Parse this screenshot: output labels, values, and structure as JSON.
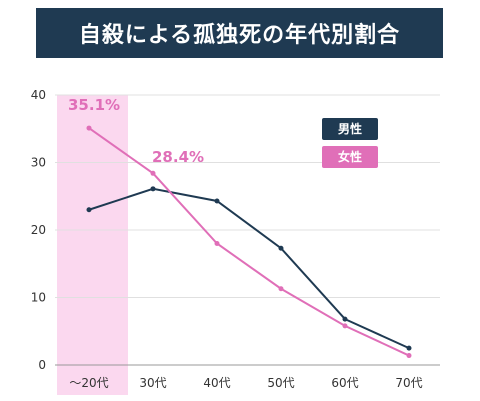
{
  "colors": {
    "title_bg": "#1f3a52",
    "male": "#1f3a52",
    "female": "#e06fb8",
    "highlight": "#fbd8ef",
    "grid": "#e0e0e0"
  },
  "chart_data": {
    "type": "line",
    "title": "自殺による孤独死の年代別割合",
    "categories": [
      "～20代",
      "30代",
      "40代",
      "50代",
      "60代",
      "70代"
    ],
    "series": [
      {
        "name": "男性",
        "values": [
          23.0,
          26.1,
          24.3,
          17.3,
          6.8,
          2.5
        ]
      },
      {
        "name": "女性",
        "values": [
          35.1,
          28.4,
          18.0,
          11.3,
          5.8,
          1.4
        ]
      }
    ],
    "ylim": [
      0,
      40
    ],
    "yticks": [
      "0",
      "10",
      "20",
      "30",
      "40"
    ],
    "annotations": [
      "35.1%",
      "28.4%"
    ],
    "highlighted_category": "～20代",
    "grid": true,
    "legend_position": "top-right"
  }
}
